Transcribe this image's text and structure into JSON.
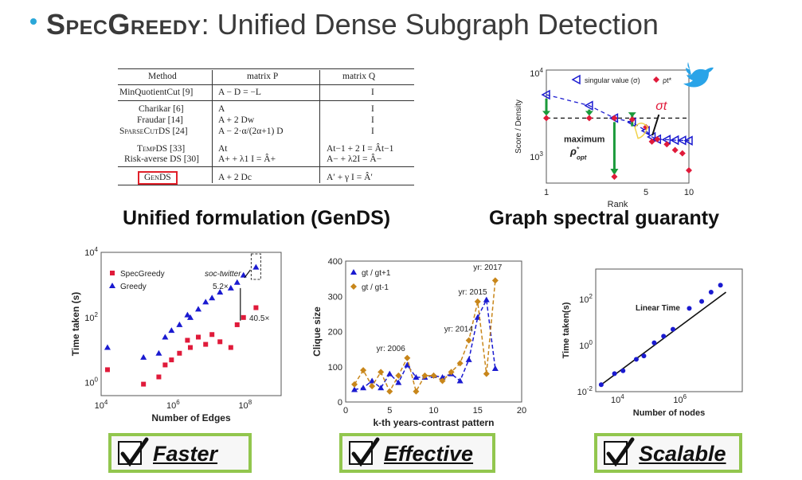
{
  "slide": {
    "title_brand": "SpecGreedy",
    "title_rest": ": Unified Dense Subgraph Detection"
  },
  "table": {
    "headers": [
      "Method",
      "matrix P",
      "matrix Q"
    ],
    "rows": [
      {
        "method": "MinQuotientCut [9]",
        "p": "A  −       D  = −L",
        "q": "I"
      },
      {
        "method": "Charikar [6]",
        "p": "A",
        "q": "I"
      },
      {
        "method": "Fraudar [14]",
        "p": "A  +   2     Dw",
        "q": "I"
      },
      {
        "method": "SparseCutDS [24]",
        "p": "A  −  2·α/(2α+1)   D",
        "q": "I"
      },
      {
        "method": "TempDS [33]",
        "p": "At",
        "q": "At−1 + 2 I = Ât−1"
      },
      {
        "method": "Risk-averse DS [30]",
        "p": "A+ +  λ1     I   = Â+",
        "q": "A−  + λ2I = Â−"
      },
      {
        "method": "GenDS",
        "p": "A  +   2     Dc",
        "q": "A′  + γ I = Â′"
      }
    ]
  },
  "captions": {
    "left": "Unified formulation (GenDS)",
    "right": "Graph spectral guaranty"
  },
  "checks": {
    "faster": "Faster",
    "effective": "Effective",
    "scalable": "Scalable"
  },
  "chart_data": [
    {
      "type": "scatter",
      "title": "",
      "xlabel": "Rank",
      "ylabel": "Score / Density",
      "log_x": true,
      "log_y": true,
      "xlim": [
        1,
        10
      ],
      "ylim": [
        500,
        10000
      ],
      "x_ticks": [
        "1",
        "5",
        "10"
      ],
      "y_ticks": [
        "10^4",
        "10^3"
      ],
      "legend": [
        "singular value (σ)",
        "ρt*"
      ],
      "series": [
        {
          "name": "singular value (σ)",
          "x": [
            1,
            2,
            3,
            4,
            5,
            5.5,
            6,
            7,
            8,
            9,
            10
          ],
          "y": [
            5200,
            3900,
            2800,
            2500,
            2000,
            1700,
            1600,
            1580,
            1560,
            1550,
            1540
          ]
        },
        {
          "name": "ρt*",
          "x": [
            1,
            2,
            3,
            4,
            5,
            5.5,
            6,
            7,
            8,
            9,
            10
          ],
          "y": [
            2800,
            2800,
            2800,
            2700,
            2200,
            1500,
            1600,
            1400,
            1200,
            1100,
            700
          ]
        }
      ],
      "annotations": [
        "maximum ρopt*",
        "σt"
      ],
      "grid": false
    },
    {
      "type": "scatter",
      "title": "",
      "xlabel": "Number of Edges",
      "ylabel": "Time taken (s)",
      "log_x": true,
      "log_y": true,
      "xlim": [
        10000,
        1000000000
      ],
      "ylim": [
        0.4,
        10000
      ],
      "x_ticks": [
        "10^4",
        "10^6",
        "10^8"
      ],
      "y_ticks": [
        "10^4",
        "10^2",
        "10^0"
      ],
      "legend": [
        "SpecGreedy",
        "Greedy"
      ],
      "series": [
        {
          "name": "SpecGreedy",
          "x": [
            15000.0,
            150000.0,
            400000.0,
            600000.0,
            900000.0,
            1500000.0,
            2500000.0,
            3000000.0,
            5000000.0,
            8000000.0,
            12000000.0,
            20000000.0,
            40000000.0,
            60000000.0,
            90000000.0,
            200000000.0
          ],
          "y": [
            2.5,
            0.9,
            1.5,
            3.5,
            5,
            8,
            20,
            12,
            25,
            15,
            30,
            18,
            12,
            60,
            100,
            200
          ]
        },
        {
          "name": "Greedy",
          "x": [
            15000.0,
            150000.0,
            400000.0,
            600000.0,
            900000.0,
            1500000.0,
            2500000.0,
            3000000.0,
            5000000.0,
            8000000.0,
            12000000.0,
            20000000.0,
            40000000.0,
            60000000.0,
            90000000.0,
            200000000.0
          ],
          "y": [
            12,
            6,
            8,
            25,
            40,
            60,
            120,
            100,
            180,
            300,
            400,
            600,
            800,
            1200,
            2000,
            3500
          ]
        }
      ],
      "annotations": [
        "soc-twitter",
        "5.2×",
        "40.5×"
      ],
      "grid": false
    },
    {
      "type": "line",
      "title": "",
      "xlabel": "k-th years-contrast pattern",
      "ylabel": "Clique size",
      "xlim": [
        0,
        20
      ],
      "ylim": [
        0,
        400
      ],
      "x_ticks": [
        "0",
        "5",
        "10",
        "15",
        "20"
      ],
      "y_ticks": [
        "0",
        "100",
        "200",
        "300",
        "400"
      ],
      "legend": [
        "gt / gt+1",
        "gt / gt-1"
      ],
      "series": [
        {
          "name": "gt / gt+1",
          "x": [
            1,
            2,
            3,
            4,
            5,
            6,
            7,
            8,
            9,
            10,
            11,
            12,
            13,
            14,
            15,
            16,
            17
          ],
          "y": [
            35,
            40,
            60,
            40,
            80,
            55,
            105,
            70,
            70,
            75,
            70,
            80,
            60,
            120,
            240,
            290,
            95
          ]
        },
        {
          "name": "gt / gt-1",
          "x": [
            1,
            2,
            3,
            4,
            5,
            6,
            7,
            8,
            9,
            10,
            11,
            12,
            13,
            14,
            15,
            16,
            17
          ],
          "y": [
            50,
            90,
            45,
            85,
            30,
            75,
            125,
            30,
            75,
            75,
            60,
            85,
            110,
            175,
            285,
            80,
            345
          ]
        }
      ],
      "annotations": [
        "yr: 2006",
        "yr: 2014",
        "yr: 2015",
        "yr: 2017"
      ],
      "grid": false
    },
    {
      "type": "scatter",
      "title": "",
      "xlabel": "Number of nodes",
      "ylabel": "Time taken(s)",
      "log_x": true,
      "log_y": true,
      "xlim": [
        2000,
        100000000
      ],
      "ylim": [
        0.01,
        2000
      ],
      "x_ticks": [
        "10^4",
        "10^6"
      ],
      "y_ticks": [
        "10^2",
        "10^0",
        "10^-2"
      ],
      "series": [
        {
          "name": "",
          "x": [
            3000,
            8000,
            15000,
            40000,
            70000,
            150000,
            300000,
            600000,
            2000000,
            5000000,
            10000000,
            20000000
          ],
          "y": [
            0.02,
            0.06,
            0.08,
            0.25,
            0.35,
            1.3,
            2.5,
            5,
            40,
            80,
            200,
            400
          ]
        }
      ],
      "annotations": [
        "Linear Time"
      ],
      "grid": false
    }
  ],
  "colors": {
    "bullet": "#2aa7d8",
    "blue": "#1a1ad0",
    "red": "#e01a3a",
    "orange": "#c8861a",
    "green": "#1a9a3a",
    "check_border": "#92c64e",
    "gendsbox": "#e0202a"
  }
}
